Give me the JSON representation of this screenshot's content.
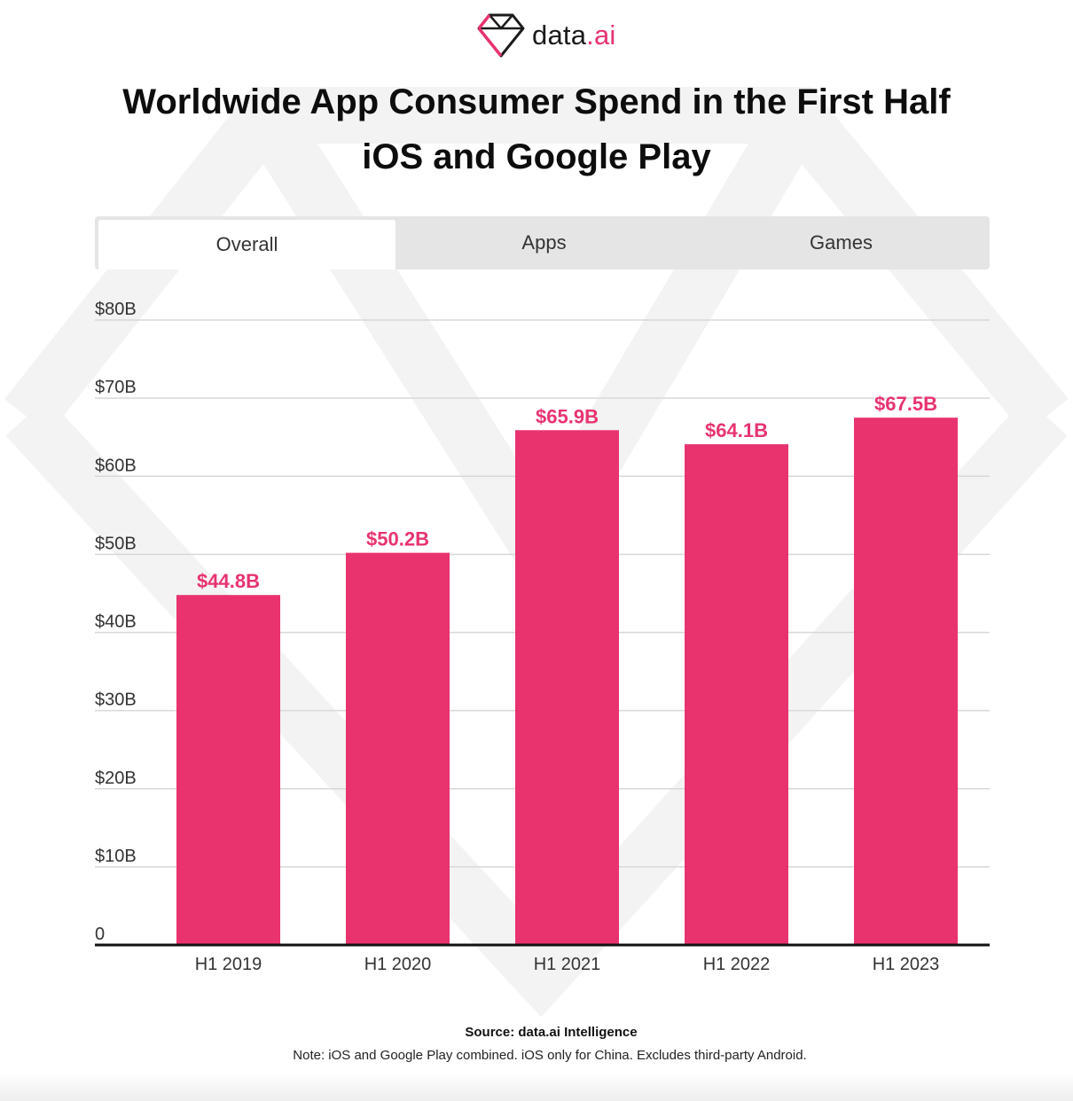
{
  "brand": {
    "name": "data",
    "dot_name": ".ai",
    "accent": "#e8336f"
  },
  "title": {
    "line1": "Worldwide App Consumer Spend in the First Half",
    "line2": "iOS and Google Play"
  },
  "tabs": [
    {
      "label": "Overall",
      "active": true
    },
    {
      "label": "Apps",
      "active": false
    },
    {
      "label": "Games",
      "active": false
    }
  ],
  "chart_data": {
    "type": "bar",
    "categories": [
      "H1 2019",
      "H1 2020",
      "H1 2021",
      "H1 2022",
      "H1 2023"
    ],
    "values": [
      44.8,
      50.2,
      65.9,
      64.1,
      67.5
    ],
    "value_labels": [
      "$44.8B",
      "$50.2B",
      "$65.9B",
      "$64.1B",
      "$67.5B"
    ],
    "ylim": [
      0,
      80
    ],
    "yticks": [
      0,
      10,
      20,
      30,
      40,
      50,
      60,
      70,
      80
    ],
    "ytick_labels": [
      "0",
      "$10B",
      "$20B",
      "$30B",
      "$40B",
      "$50B",
      "$60B",
      "$70B",
      "$80B"
    ],
    "bar_color": "#e8336f",
    "grid": true
  },
  "footer": {
    "source": "Source: data.ai Intelligence",
    "note": "Note: iOS and Google Play combined. iOS only for China. Excludes third-party Android."
  }
}
